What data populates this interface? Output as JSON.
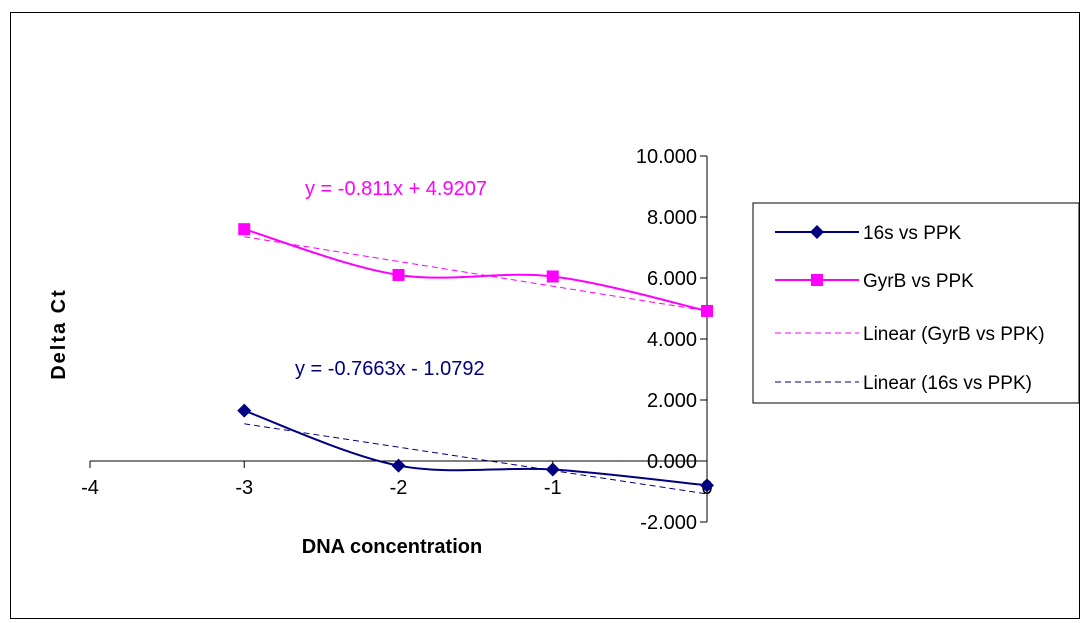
{
  "chart_data": {
    "type": "line",
    "title": "",
    "xlabel": "DNA concentration",
    "ylabel": "Delta Ct",
    "xlim": [
      -4,
      0
    ],
    "ylim": [
      -2,
      10
    ],
    "x_ticks": [
      -4,
      -3,
      -2,
      -1,
      0
    ],
    "x_tick_labels": [
      "-4",
      "-3",
      "-2",
      "-1",
      "0"
    ],
    "y_ticks": [
      -2,
      0,
      2,
      4,
      6,
      8,
      10
    ],
    "y_tick_labels": [
      "-2.000",
      "0.000",
      "2.000",
      "4.000",
      "6.000",
      "8.000",
      "10.000"
    ],
    "grid": false,
    "legend_position": "right",
    "series": [
      {
        "name": "16s vs PPK",
        "color": "#000080",
        "marker": "diamond",
        "x": [
          -3,
          -2,
          -1,
          0
        ],
        "y": [
          1.65,
          -0.15,
          -0.28,
          -0.8
        ]
      },
      {
        "name": "GyrB vs PPK",
        "color": "#ff00ff",
        "marker": "square",
        "x": [
          -3,
          -2,
          -1,
          0
        ],
        "y": [
          7.6,
          6.1,
          6.05,
          4.92
        ]
      }
    ],
    "trendlines": [
      {
        "name": "Linear (GyrB vs PPK)",
        "color": "#ff00ff",
        "slope": -0.811,
        "intercept": 4.9207
      },
      {
        "name": "Linear (16s vs PPK)",
        "color": "#000080",
        "slope": -0.7663,
        "intercept": -1.0792
      }
    ],
    "annotations": [
      {
        "text": "y = -0.811x + 4.9207",
        "color": "#ff00ff"
      },
      {
        "text": "y = -0.7663x - 1.0792",
        "color": "#000080"
      }
    ]
  }
}
